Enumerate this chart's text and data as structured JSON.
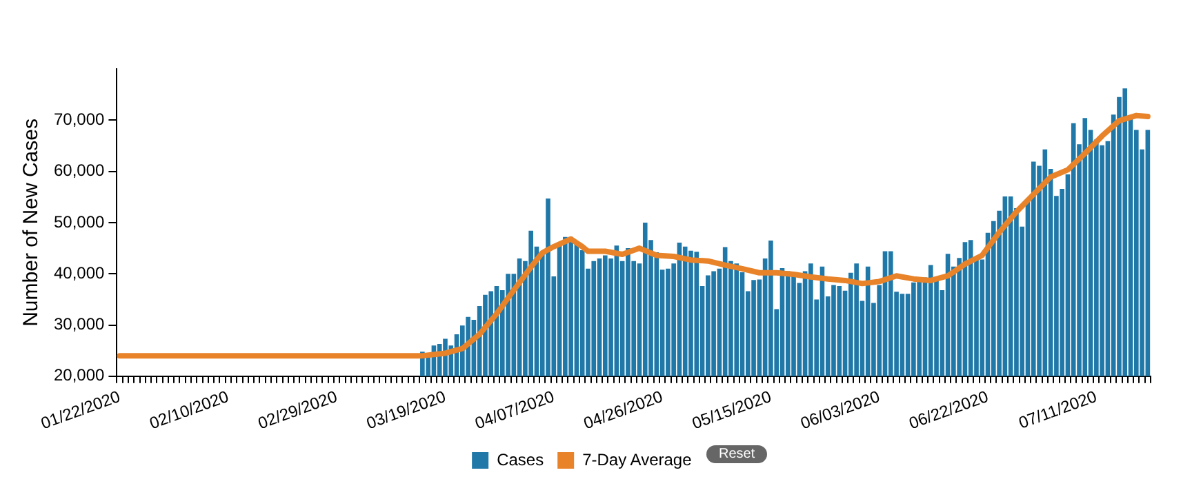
{
  "chart_data": {
    "type": "bar",
    "ylabel": "Number of New Cases",
    "categories": [
      "01/22/2020",
      null,
      null,
      null,
      null,
      null,
      null,
      null,
      null,
      null,
      null,
      null,
      null,
      null,
      null,
      null,
      null,
      null,
      null,
      "02/10/2020",
      null,
      null,
      null,
      null,
      null,
      null,
      null,
      null,
      null,
      null,
      null,
      null,
      null,
      null,
      null,
      null,
      null,
      null,
      "02/29/2020",
      null,
      null,
      null,
      null,
      null,
      null,
      null,
      null,
      null,
      null,
      null,
      null,
      null,
      null,
      null,
      null,
      null,
      null,
      "03/19/2020",
      null,
      null,
      null,
      null,
      null,
      null,
      null,
      null,
      null,
      null,
      null,
      null,
      null,
      null,
      null,
      null,
      null,
      null,
      "04/07/2020",
      null,
      null,
      null,
      null,
      null,
      null,
      null,
      null,
      null,
      null,
      null,
      null,
      null,
      null,
      null,
      null,
      null,
      null,
      "04/26/2020",
      null,
      null,
      null,
      null,
      null,
      null,
      null,
      null,
      null,
      null,
      null,
      null,
      null,
      null,
      null,
      null,
      null,
      null,
      "05/15/2020",
      null,
      null,
      null,
      null,
      null,
      null,
      null,
      null,
      null,
      null,
      null,
      null,
      null,
      null,
      null,
      null,
      null,
      null,
      "06/03/2020",
      null,
      null,
      null,
      null,
      null,
      null,
      null,
      null,
      null,
      null,
      null,
      null,
      null,
      null,
      null,
      null,
      null,
      null,
      "06/22/2020",
      null,
      null,
      null,
      null,
      null,
      null,
      null,
      null,
      null,
      null,
      null,
      null,
      null,
      null,
      null,
      null,
      null,
      null,
      "07/11/2020",
      null,
      null,
      null,
      null,
      null,
      null,
      null,
      null,
      null
    ],
    "series": [
      {
        "name": "Cases",
        "color": "#1f78a8",
        "values": [
          null,
          null,
          null,
          null,
          null,
          null,
          null,
          null,
          null,
          null,
          null,
          null,
          null,
          null,
          null,
          null,
          null,
          null,
          null,
          null,
          null,
          null,
          null,
          null,
          null,
          null,
          null,
          null,
          null,
          null,
          null,
          null,
          null,
          null,
          null,
          null,
          null,
          null,
          null,
          null,
          null,
          null,
          null,
          null,
          null,
          null,
          null,
          null,
          null,
          null,
          null,
          null,
          null,
          24800,
          24500,
          26000,
          26300,
          27300,
          26000,
          28200,
          29900,
          31600,
          31000,
          33700,
          35900,
          36600,
          37600,
          36800,
          40000,
          40000,
          43000,
          42500,
          48400,
          45300,
          44200,
          54700,
          39500,
          46000,
          47200,
          47200,
          46000,
          44600,
          41000,
          42500,
          43000,
          43600,
          43000,
          45500,
          42500,
          45000,
          42500,
          42000,
          50000,
          46600,
          44200,
          40800,
          41000,
          42000,
          46100,
          45300,
          44500,
          44300,
          37600,
          39700,
          40500,
          41000,
          45200,
          42500,
          42000,
          40300,
          36600,
          38800,
          38900,
          43000,
          46500,
          33100,
          41100,
          40500,
          39700,
          38200,
          40500,
          42000,
          35000,
          41400,
          35600,
          37800,
          37600,
          36700,
          40200,
          42000,
          34700,
          41400,
          34300,
          37800,
          44400,
          44400,
          36500,
          36100,
          36100,
          38300,
          39100,
          39300,
          41700,
          38900,
          36800,
          43900,
          41400,
          43100,
          46200,
          46600,
          42700,
          42800,
          48000,
          50300,
          52300,
          55100,
          55100,
          52800,
          49200,
          54500,
          61900,
          61100,
          64300,
          60500,
          55200,
          56600,
          59400,
          69400,
          65300,
          70400,
          68100,
          66200,
          65100,
          65900,
          71100,
          74500,
          76200,
          71000,
          68100,
          64300,
          68100
        ]
      },
      {
        "name": "7-Day Average",
        "type": "line",
        "color": "#e8832a",
        "values": [
          24000,
          null,
          null,
          null,
          null,
          null,
          null,
          null,
          null,
          null,
          null,
          null,
          null,
          null,
          null,
          null,
          null,
          null,
          null,
          null,
          null,
          null,
          null,
          null,
          null,
          null,
          null,
          null,
          null,
          null,
          null,
          null,
          null,
          null,
          null,
          null,
          null,
          null,
          null,
          null,
          null,
          null,
          null,
          null,
          null,
          null,
          null,
          null,
          null,
          null,
          null,
          null,
          null,
          24000,
          null,
          null,
          null,
          24500,
          null,
          null,
          25400,
          null,
          null,
          28200,
          null,
          null,
          32200,
          null,
          null,
          36800,
          null,
          null,
          41300,
          null,
          44100,
          null,
          45300,
          null,
          null,
          46800,
          null,
          45300,
          44400,
          null,
          null,
          44400,
          null,
          null,
          43800,
          null,
          null,
          45000,
          null,
          null,
          43600,
          null,
          null,
          43400,
          null,
          null,
          42700,
          null,
          null,
          42500,
          null,
          null,
          41700,
          null,
          null,
          41000,
          null,
          null,
          40200,
          null,
          null,
          40200,
          null,
          null,
          39900,
          null,
          null,
          39400,
          null,
          null,
          39000,
          null,
          null,
          38700,
          null,
          null,
          38100,
          null,
          null,
          38500,
          null,
          null,
          39600,
          null,
          null,
          39000,
          null,
          null,
          38700,
          null,
          null,
          39600,
          null,
          null,
          41900,
          null,
          null,
          43600,
          null,
          null,
          48100,
          null,
          null,
          52100,
          null,
          null,
          55500,
          null,
          null,
          58900,
          null,
          null,
          60300,
          null,
          null,
          63500,
          null,
          null,
          66900,
          null,
          null,
          69900,
          null,
          null,
          70900,
          null,
          70700
        ]
      }
    ],
    "ylim": [
      20000,
      80000
    ],
    "yticks": [
      {
        "value": 20000,
        "label": "20,000"
      },
      {
        "value": 30000,
        "label": "30,000"
      },
      {
        "value": 40000,
        "label": "40,000"
      },
      {
        "value": 50000,
        "label": "50,000"
      },
      {
        "value": 60000,
        "label": "60,000"
      },
      {
        "value": 70000,
        "label": "70,000"
      }
    ],
    "legend": "bottom",
    "marker": "none",
    "annotations": [
      "Reset"
    ]
  }
}
